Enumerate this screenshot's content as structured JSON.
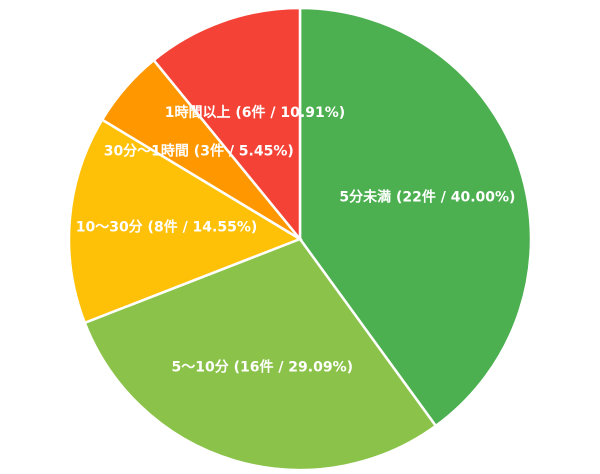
{
  "chart_data": {
    "type": "pie",
    "title": "",
    "start_angle_deg": 0,
    "direction": "clockwise",
    "legend": "none",
    "slices": [
      {
        "label": "5分未満 (22件 / 40.00%)",
        "name": "5分未満",
        "count": 22,
        "percent": 40.0,
        "color": "#4caf50"
      },
      {
        "label": "5〜10分 (16件 / 29.09%)",
        "name": "5〜10分",
        "count": 16,
        "percent": 29.09,
        "color": "#8bc34a"
      },
      {
        "label": "10〜30分 (8件 / 14.55%)",
        "name": "10〜30分",
        "count": 8,
        "percent": 14.55,
        "color": "#ffc107"
      },
      {
        "label": "30分〜1時間 (3件 / 5.45%)",
        "name": "30分〜1時間",
        "count": 3,
        "percent": 5.45,
        "color": "#ff9800"
      },
      {
        "label": "1時間以上 (6件 / 10.91%)",
        "name": "1時間以上",
        "count": 6,
        "percent": 10.91,
        "color": "#f44336"
      }
    ]
  }
}
